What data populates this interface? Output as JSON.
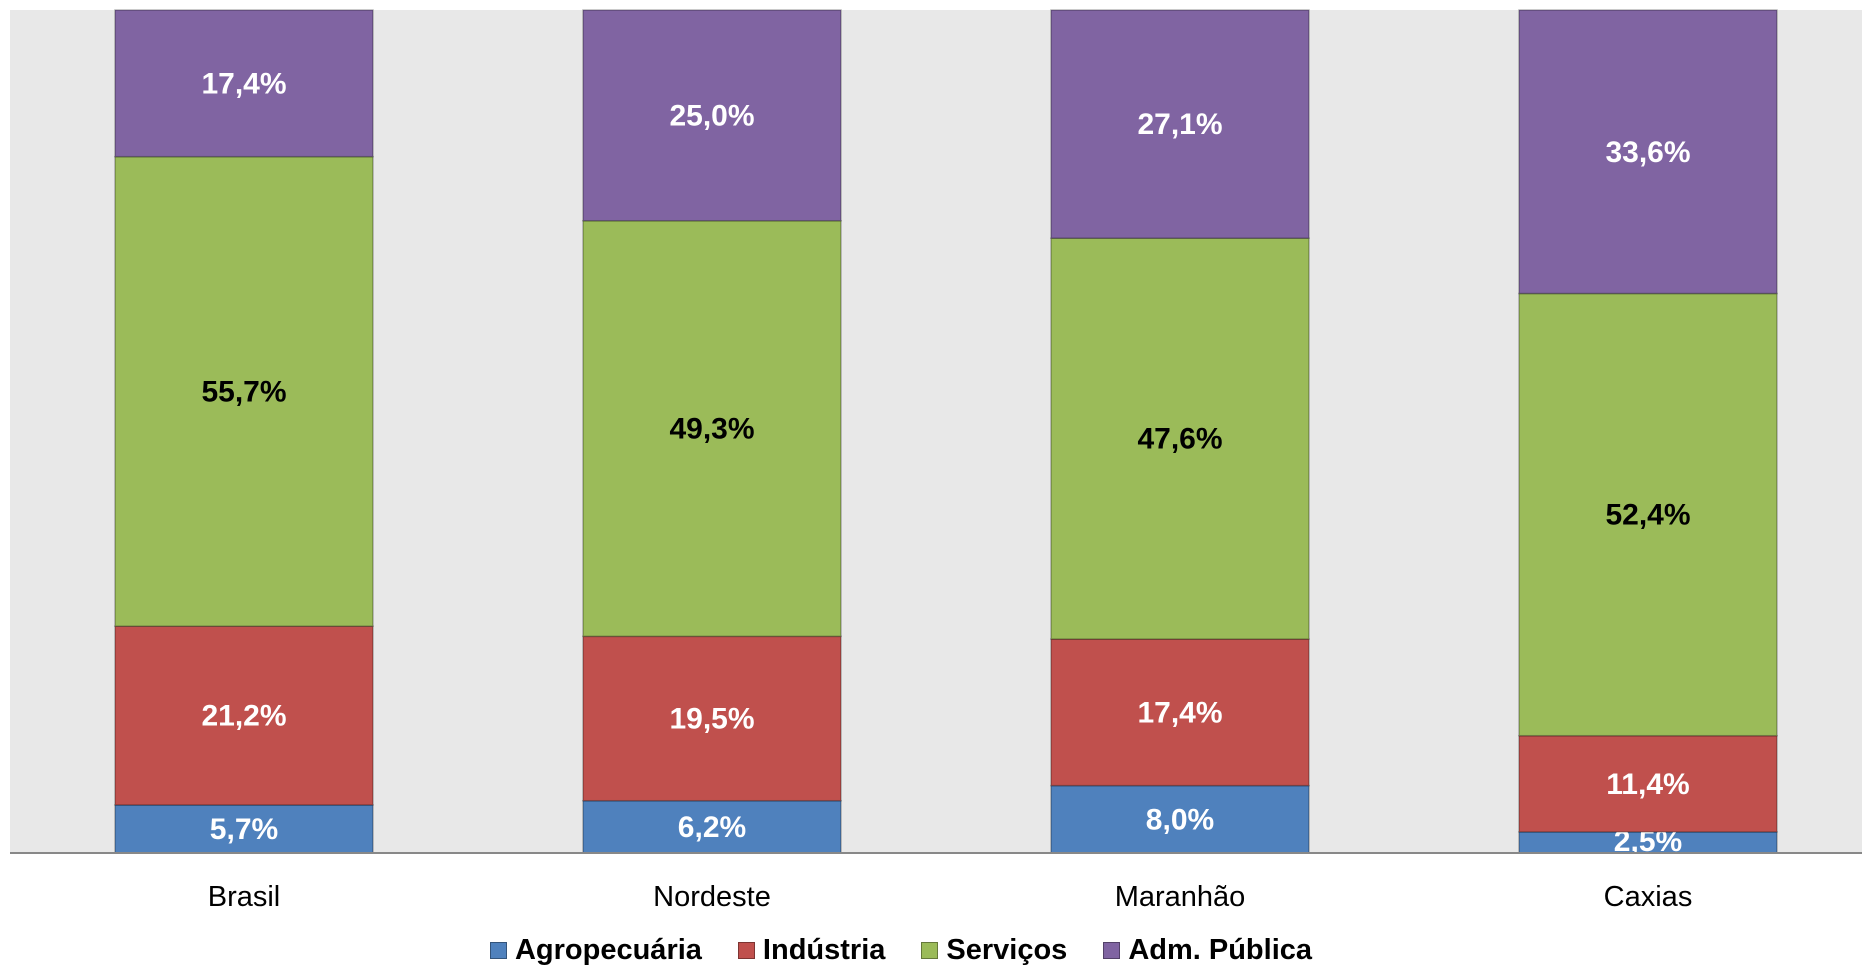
{
  "chart_data": {
    "type": "bar",
    "stacked": true,
    "percent": true,
    "categories": [
      "Brasil",
      "Nordeste",
      "Maranhão",
      "Caxias"
    ],
    "series": [
      {
        "name": "Agropecuária",
        "color": "#4F81BD",
        "label_color": "#FFFFFF",
        "values": [
          5.7,
          6.2,
          8.0,
          2.5
        ],
        "labels": [
          "5,7%",
          "6,2%",
          "8,0%",
          "2,5%"
        ]
      },
      {
        "name": "Indústria",
        "color": "#C0504D",
        "label_color": "#FFFFFF",
        "values": [
          21.2,
          19.5,
          17.4,
          11.4
        ],
        "labels": [
          "21,2%",
          "19,5%",
          "17,4%",
          "11,4%"
        ]
      },
      {
        "name": "Serviços",
        "color": "#9BBB59",
        "label_color": "#000000",
        "values": [
          55.7,
          49.3,
          47.6,
          52.4
        ],
        "labels": [
          "55,7%",
          "49,3%",
          "47,6%",
          "52,4%"
        ]
      },
      {
        "name": "Adm. Pública",
        "color": "#8064A2",
        "label_color": "#FFFFFF",
        "values": [
          17.4,
          25.0,
          27.1,
          33.6
        ],
        "labels": [
          "17,4%",
          "25,0%",
          "27,1%",
          "33,6%"
        ]
      }
    ],
    "ylim": [
      0,
      100
    ],
    "grid": false,
    "legend_position": "bottom",
    "plot_background": "#E8E8E8"
  }
}
